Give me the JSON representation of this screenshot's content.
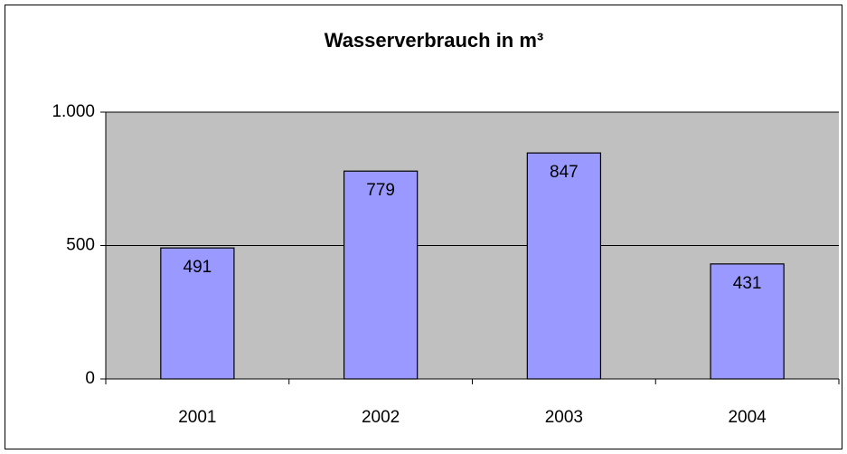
{
  "chart_data": {
    "type": "bar",
    "title": "Wasserverbrauch in m³",
    "categories": [
      "2001",
      "2002",
      "2003",
      "2004"
    ],
    "values": [
      491,
      779,
      847,
      431
    ],
    "color": "#9999ff",
    "ylim": [
      0,
      1000
    ],
    "yticks": [
      0,
      500,
      {
        "value": 1000,
        "label": "1.000"
      }
    ],
    "grid": true,
    "data_labels": true
  }
}
